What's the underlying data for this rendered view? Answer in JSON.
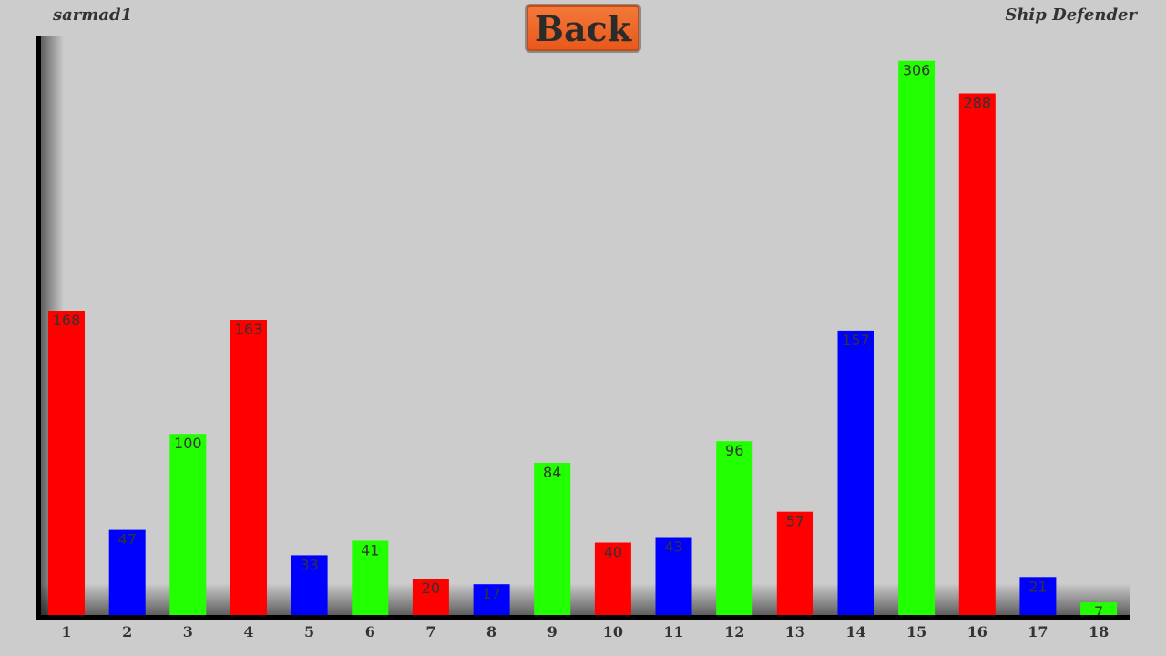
{
  "header": {
    "player": "sarmad1",
    "game": "Ship Defender",
    "back_label": "Back"
  },
  "colors": {
    "red": "#ff0000",
    "blue": "#0000ff",
    "green": "#22ff00",
    "background": "#cccccc",
    "back_button": "#f06a2a"
  },
  "chart_data": {
    "type": "bar",
    "categories": [
      "1",
      "2",
      "3",
      "4",
      "5",
      "6",
      "7",
      "8",
      "9",
      "10",
      "11",
      "12",
      "13",
      "14",
      "15",
      "16",
      "17",
      "18"
    ],
    "values": [
      168,
      47,
      100,
      163,
      33,
      41,
      20,
      17,
      84,
      40,
      43,
      96,
      57,
      157,
      306,
      288,
      21,
      7
    ],
    "bar_colors": [
      "red",
      "blue",
      "green",
      "red",
      "blue",
      "green",
      "red",
      "blue",
      "green",
      "red",
      "blue",
      "green",
      "red",
      "blue",
      "green",
      "red",
      "blue",
      "green"
    ],
    "title": "",
    "xlabel": "",
    "ylabel": "",
    "ylim": [
      0,
      320
    ],
    "grid": false,
    "legend": "none"
  }
}
